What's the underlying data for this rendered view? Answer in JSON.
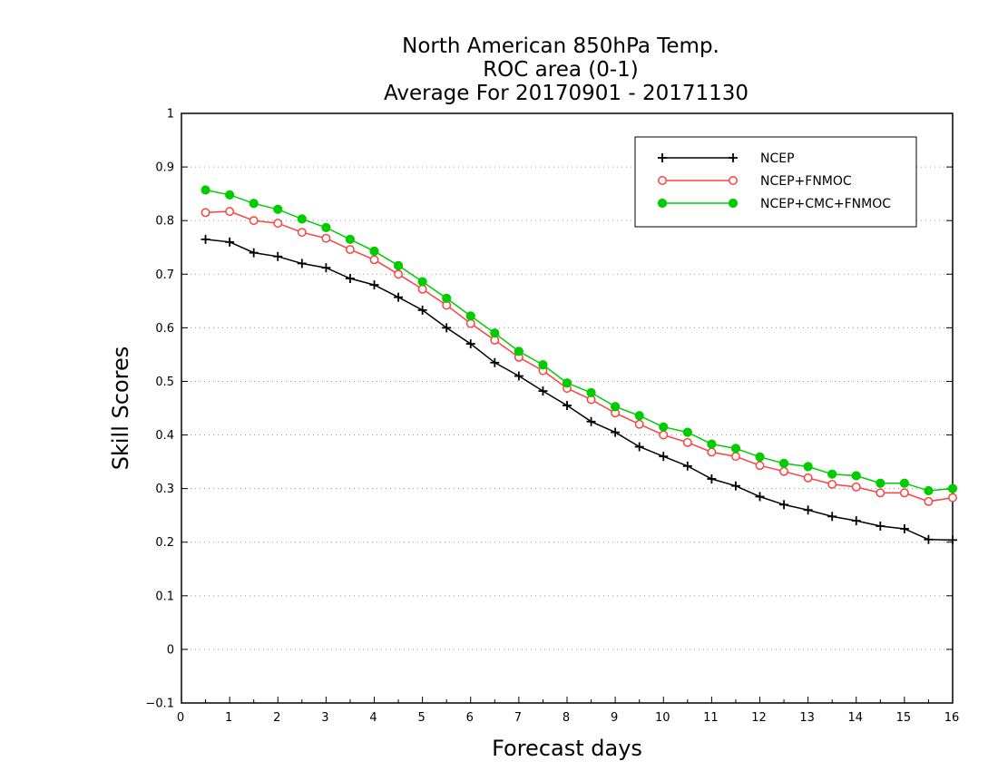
{
  "chart_data": {
    "type": "line",
    "title_lines": [
      "North American 850hPa Temp.",
      "ROC area (0-1)",
      "Average For 20170901 - 20171130"
    ],
    "xlabel": "Forecast days",
    "ylabel": "Skill Scores",
    "xlim": [
      0,
      16
    ],
    "ylim": [
      -0.1,
      1
    ],
    "x_ticks": [
      "0",
      "1",
      "2",
      "3",
      "4",
      "5",
      "6",
      "7",
      "8",
      "9",
      "10",
      "11",
      "12",
      "13",
      "14",
      "15",
      "16"
    ],
    "y_ticks": [
      "−0.1",
      "0",
      "0.1",
      "0.2",
      "0.3",
      "0.4",
      "0.5",
      "0.6",
      "0.7",
      "0.8",
      "0.9",
      "1"
    ],
    "grid": true,
    "legend_position": "top-right",
    "x": [
      0.5,
      1,
      1.5,
      2,
      2.5,
      3,
      3.5,
      4,
      4.5,
      5,
      5.5,
      6,
      6.5,
      7,
      7.5,
      8,
      8.5,
      9,
      9.5,
      10,
      10.5,
      11,
      11.5,
      12,
      12.5,
      13,
      13.5,
      14,
      14.5,
      15,
      15.5,
      16
    ],
    "series": [
      {
        "name": "NCEP",
        "color": "#000000",
        "marker": "plus",
        "values": [
          0.765,
          0.76,
          0.74,
          0.733,
          0.72,
          0.712,
          0.692,
          0.68,
          0.657,
          0.633,
          0.6,
          0.57,
          0.535,
          0.51,
          0.482,
          0.455,
          0.425,
          0.405,
          0.378,
          0.36,
          0.342,
          0.318,
          0.305,
          0.285,
          0.27,
          0.26,
          0.248,
          0.24,
          0.23,
          0.225,
          0.205,
          0.204
        ]
      },
      {
        "name": "NCEP+FNMOC",
        "color": "#ff4040",
        "marker": "open-circle",
        "values": [
          0.815,
          0.817,
          0.8,
          0.795,
          0.778,
          0.767,
          0.746,
          0.727,
          0.7,
          0.672,
          0.642,
          0.608,
          0.577,
          0.545,
          0.52,
          0.487,
          0.466,
          0.441,
          0.42,
          0.4,
          0.386,
          0.368,
          0.36,
          0.343,
          0.332,
          0.32,
          0.308,
          0.303,
          0.292,
          0.292,
          0.276,
          0.283
        ]
      },
      {
        "name": "NCEP+CMC+FNMOC",
        "color": "#00cc00",
        "marker": "filled-circle",
        "values": [
          0.857,
          0.848,
          0.832,
          0.821,
          0.803,
          0.787,
          0.765,
          0.743,
          0.716,
          0.686,
          0.655,
          0.622,
          0.59,
          0.556,
          0.531,
          0.497,
          0.479,
          0.453,
          0.436,
          0.415,
          0.405,
          0.383,
          0.375,
          0.359,
          0.347,
          0.341,
          0.327,
          0.324,
          0.31,
          0.31,
          0.296,
          0.3
        ]
      }
    ]
  }
}
